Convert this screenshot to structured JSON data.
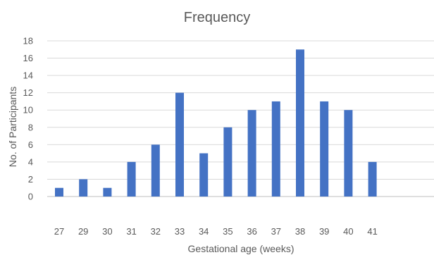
{
  "chart_data": {
    "type": "bar",
    "title": "Frequency",
    "xlabel": "Gestational age (weeks)",
    "ylabel": "No. of Participants",
    "categories": [
      "27",
      "29",
      "30",
      "31",
      "32",
      "33",
      "34",
      "35",
      "36",
      "37",
      "38",
      "39",
      "40",
      "41"
    ],
    "values": [
      1,
      2,
      1,
      4,
      6,
      12,
      5,
      8,
      10,
      11,
      17,
      11,
      10,
      4
    ],
    "ylim": [
      0,
      18
    ],
    "yticks": [
      "0",
      "2",
      "4",
      "6",
      "8",
      "10",
      "12",
      "14",
      "16",
      "18"
    ],
    "grid": true,
    "bar_color": "#4472C4",
    "grid_color": "#D9D9D9"
  }
}
